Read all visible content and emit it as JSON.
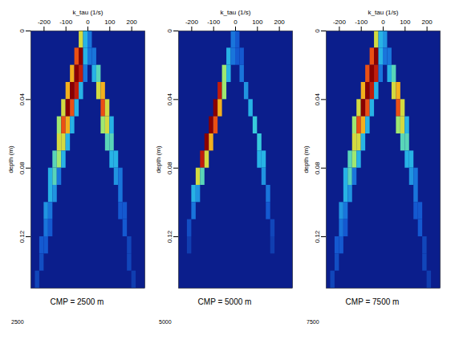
{
  "chart_data": [
    {
      "type": "heatmap",
      "x_label": "k_tau (1/s)",
      "y_label": "depth (m)",
      "caption": "CMP = 2500 m",
      "footnote": "2500",
      "xlim": [
        -260,
        260
      ],
      "xticks": [
        -200,
        -100,
        0,
        100,
        200
      ],
      "ylim": [
        0,
        0.15
      ],
      "yticks": [
        0,
        0.04,
        0.08,
        0.12
      ],
      "zlim": [
        0,
        1
      ],
      "cells": [
        {
          "x": -30,
          "y": 0.005,
          "value": 0.6
        },
        {
          "x": -10,
          "y": 0.005,
          "value": 0.3
        },
        {
          "x": 10,
          "y": 0.005,
          "value": 0.2
        },
        {
          "x": -50,
          "y": 0.015,
          "value": 0.8
        },
        {
          "x": -30,
          "y": 0.015,
          "value": 1.0
        },
        {
          "x": -10,
          "y": 0.015,
          "value": 0.3
        },
        {
          "x": 10,
          "y": 0.015,
          "value": 0.2
        },
        {
          "x": 30,
          "y": 0.015,
          "value": 0.2
        },
        {
          "x": -70,
          "y": 0.025,
          "value": 0.7
        },
        {
          "x": -50,
          "y": 0.025,
          "value": 1.0
        },
        {
          "x": -30,
          "y": 0.025,
          "value": 0.9
        },
        {
          "x": -10,
          "y": 0.025,
          "value": 0.2
        },
        {
          "x": 30,
          "y": 0.025,
          "value": 0.3
        },
        {
          "x": 50,
          "y": 0.025,
          "value": 0.4
        },
        {
          "x": -90,
          "y": 0.035,
          "value": 0.7
        },
        {
          "x": -70,
          "y": 0.035,
          "value": 1.0
        },
        {
          "x": -50,
          "y": 0.035,
          "value": 0.9
        },
        {
          "x": -30,
          "y": 0.035,
          "value": 0.3
        },
        {
          "x": 50,
          "y": 0.035,
          "value": 0.6
        },
        {
          "x": 70,
          "y": 0.035,
          "value": 0.7
        },
        {
          "x": -110,
          "y": 0.045,
          "value": 0.6
        },
        {
          "x": -90,
          "y": 0.045,
          "value": 1.0
        },
        {
          "x": -70,
          "y": 0.045,
          "value": 0.8
        },
        {
          "x": -50,
          "y": 0.045,
          "value": 0.3
        },
        {
          "x": 70,
          "y": 0.045,
          "value": 0.8
        },
        {
          "x": 90,
          "y": 0.045,
          "value": 0.6
        },
        {
          "x": -130,
          "y": 0.055,
          "value": 0.5
        },
        {
          "x": -110,
          "y": 0.055,
          "value": 0.8
        },
        {
          "x": -90,
          "y": 0.055,
          "value": 0.7
        },
        {
          "x": -70,
          "y": 0.055,
          "value": 0.3
        },
        {
          "x": 70,
          "y": 0.055,
          "value": 0.5
        },
        {
          "x": 90,
          "y": 0.055,
          "value": 0.6
        },
        {
          "x": 110,
          "y": 0.055,
          "value": 0.3
        },
        {
          "x": -130,
          "y": 0.065,
          "value": 0.6
        },
        {
          "x": -110,
          "y": 0.065,
          "value": 0.6
        },
        {
          "x": -90,
          "y": 0.065,
          "value": 0.3
        },
        {
          "x": 90,
          "y": 0.065,
          "value": 0.4
        },
        {
          "x": 110,
          "y": 0.065,
          "value": 0.4
        },
        {
          "x": -150,
          "y": 0.075,
          "value": 0.4
        },
        {
          "x": -130,
          "y": 0.075,
          "value": 0.5
        },
        {
          "x": -110,
          "y": 0.075,
          "value": 0.3
        },
        {
          "x": 110,
          "y": 0.075,
          "value": 0.3
        },
        {
          "x": 130,
          "y": 0.075,
          "value": 0.3
        },
        {
          "x": -170,
          "y": 0.085,
          "value": 0.3
        },
        {
          "x": -150,
          "y": 0.085,
          "value": 0.4
        },
        {
          "x": -130,
          "y": 0.085,
          "value": 0.2
        },
        {
          "x": 130,
          "y": 0.085,
          "value": 0.25
        },
        {
          "x": 150,
          "y": 0.085,
          "value": 0.2
        },
        {
          "x": -170,
          "y": 0.095,
          "value": 0.3
        },
        {
          "x": -150,
          "y": 0.095,
          "value": 0.25
        },
        {
          "x": 150,
          "y": 0.095,
          "value": 0.2
        },
        {
          "x": -190,
          "y": 0.105,
          "value": 0.25
        },
        {
          "x": -170,
          "y": 0.105,
          "value": 0.2
        },
        {
          "x": 150,
          "y": 0.105,
          "value": 0.15
        },
        {
          "x": 170,
          "y": 0.105,
          "value": 0.15
        },
        {
          "x": -190,
          "y": 0.115,
          "value": 0.2
        },
        {
          "x": -170,
          "y": 0.115,
          "value": 0.15
        },
        {
          "x": 170,
          "y": 0.115,
          "value": 0.15
        },
        {
          "x": -210,
          "y": 0.125,
          "value": 0.15
        },
        {
          "x": -190,
          "y": 0.125,
          "value": 0.15
        },
        {
          "x": 190,
          "y": 0.125,
          "value": 0.1
        },
        {
          "x": -210,
          "y": 0.135,
          "value": 0.12
        },
        {
          "x": 190,
          "y": 0.135,
          "value": 0.1
        },
        {
          "x": -230,
          "y": 0.145,
          "value": 0.1
        },
        {
          "x": 210,
          "y": 0.145,
          "value": 0.08
        }
      ]
    },
    {
      "type": "heatmap",
      "x_label": "k_tau (1/s)",
      "y_label": "depth (m)",
      "caption": "CMP = 5000 m",
      "footnote": "5000",
      "xlim": [
        -260,
        260
      ],
      "xticks": [
        -200,
        -100,
        0,
        100,
        200
      ],
      "ylim": [
        0,
        0.15
      ],
      "yticks": [
        0,
        0.04,
        0.08,
        0.12
      ],
      "zlim": [
        0,
        1
      ],
      "cells": [
        {
          "x": -10,
          "y": 0.005,
          "value": 0.2
        },
        {
          "x": 10,
          "y": 0.005,
          "value": 0.15
        },
        {
          "x": -30,
          "y": 0.015,
          "value": 0.3
        },
        {
          "x": -10,
          "y": 0.015,
          "value": 0.2
        },
        {
          "x": 10,
          "y": 0.015,
          "value": 0.15
        },
        {
          "x": 30,
          "y": 0.015,
          "value": 0.15
        },
        {
          "x": -50,
          "y": 0.025,
          "value": 0.5
        },
        {
          "x": -30,
          "y": 0.025,
          "value": 0.3
        },
        {
          "x": 30,
          "y": 0.025,
          "value": 0.2
        },
        {
          "x": -70,
          "y": 0.035,
          "value": 0.9
        },
        {
          "x": -50,
          "y": 0.035,
          "value": 0.5
        },
        {
          "x": 50,
          "y": 0.035,
          "value": 0.25
        },
        {
          "x": -90,
          "y": 0.045,
          "value": 1.0
        },
        {
          "x": -70,
          "y": 0.045,
          "value": 0.7
        },
        {
          "x": 70,
          "y": 0.045,
          "value": 0.3
        },
        {
          "x": -110,
          "y": 0.055,
          "value": 1.0
        },
        {
          "x": -90,
          "y": 0.055,
          "value": 0.8
        },
        {
          "x": 90,
          "y": 0.055,
          "value": 0.35
        },
        {
          "x": -130,
          "y": 0.065,
          "value": 1.0
        },
        {
          "x": -110,
          "y": 0.065,
          "value": 0.7
        },
        {
          "x": 110,
          "y": 0.065,
          "value": 0.35
        },
        {
          "x": -150,
          "y": 0.075,
          "value": 0.9
        },
        {
          "x": -130,
          "y": 0.075,
          "value": 0.6
        },
        {
          "x": 110,
          "y": 0.075,
          "value": 0.3
        },
        {
          "x": 130,
          "y": 0.075,
          "value": 0.3
        },
        {
          "x": -170,
          "y": 0.085,
          "value": 0.6
        },
        {
          "x": -150,
          "y": 0.085,
          "value": 0.4
        },
        {
          "x": 130,
          "y": 0.085,
          "value": 0.25
        },
        {
          "x": -190,
          "y": 0.095,
          "value": 0.3
        },
        {
          "x": -170,
          "y": 0.095,
          "value": 0.25
        },
        {
          "x": 150,
          "y": 0.095,
          "value": 0.2
        },
        {
          "x": -190,
          "y": 0.105,
          "value": 0.2
        },
        {
          "x": 150,
          "y": 0.105,
          "value": 0.15
        },
        {
          "x": -210,
          "y": 0.115,
          "value": 0.12
        },
        {
          "x": 170,
          "y": 0.115,
          "value": 0.1
        },
        {
          "x": -210,
          "y": 0.125,
          "value": 0.08
        },
        {
          "x": 170,
          "y": 0.125,
          "value": 0.08
        }
      ]
    },
    {
      "type": "heatmap",
      "x_label": "k_tau (1/s)",
      "y_label": "depth (m)",
      "caption": "CMP = 7500 m",
      "footnote": "7500",
      "xlim": [
        -260,
        260
      ],
      "xticks": [
        -200,
        -100,
        0,
        100,
        200
      ],
      "ylim": [
        0,
        0.15
      ],
      "yticks": [
        0,
        0.04,
        0.08,
        0.12
      ],
      "zlim": [
        0,
        1
      ],
      "cells": [
        {
          "x": -30,
          "y": 0.005,
          "value": 0.6
        },
        {
          "x": -10,
          "y": 0.005,
          "value": 0.3
        },
        {
          "x": 10,
          "y": 0.005,
          "value": 0.25
        },
        {
          "x": -50,
          "y": 0.015,
          "value": 0.8
        },
        {
          "x": -30,
          "y": 0.015,
          "value": 1.0
        },
        {
          "x": -10,
          "y": 0.015,
          "value": 0.3
        },
        {
          "x": 10,
          "y": 0.015,
          "value": 0.2
        },
        {
          "x": 30,
          "y": 0.015,
          "value": 0.2
        },
        {
          "x": -70,
          "y": 0.025,
          "value": 0.8
        },
        {
          "x": -50,
          "y": 0.025,
          "value": 1.0
        },
        {
          "x": -30,
          "y": 0.025,
          "value": 0.9
        },
        {
          "x": -10,
          "y": 0.025,
          "value": 0.2
        },
        {
          "x": 30,
          "y": 0.025,
          "value": 0.3
        },
        {
          "x": 50,
          "y": 0.025,
          "value": 0.4
        },
        {
          "x": -90,
          "y": 0.035,
          "value": 0.7
        },
        {
          "x": -70,
          "y": 0.035,
          "value": 1.0
        },
        {
          "x": -50,
          "y": 0.035,
          "value": 0.9
        },
        {
          "x": -30,
          "y": 0.035,
          "value": 0.3
        },
        {
          "x": 50,
          "y": 0.035,
          "value": 0.6
        },
        {
          "x": 70,
          "y": 0.035,
          "value": 0.7
        },
        {
          "x": -110,
          "y": 0.045,
          "value": 0.6
        },
        {
          "x": -90,
          "y": 0.045,
          "value": 1.0
        },
        {
          "x": -70,
          "y": 0.045,
          "value": 0.8
        },
        {
          "x": -50,
          "y": 0.045,
          "value": 0.3
        },
        {
          "x": 70,
          "y": 0.045,
          "value": 0.8
        },
        {
          "x": 90,
          "y": 0.045,
          "value": 0.6
        },
        {
          "x": -130,
          "y": 0.055,
          "value": 0.5
        },
        {
          "x": -110,
          "y": 0.055,
          "value": 0.8
        },
        {
          "x": -90,
          "y": 0.055,
          "value": 0.7
        },
        {
          "x": -70,
          "y": 0.055,
          "value": 0.3
        },
        {
          "x": 70,
          "y": 0.055,
          "value": 0.5
        },
        {
          "x": 90,
          "y": 0.055,
          "value": 0.6
        },
        {
          "x": 110,
          "y": 0.055,
          "value": 0.3
        },
        {
          "x": -130,
          "y": 0.065,
          "value": 0.6
        },
        {
          "x": -110,
          "y": 0.065,
          "value": 0.6
        },
        {
          "x": -90,
          "y": 0.065,
          "value": 0.3
        },
        {
          "x": 90,
          "y": 0.065,
          "value": 0.4
        },
        {
          "x": 110,
          "y": 0.065,
          "value": 0.4
        },
        {
          "x": -150,
          "y": 0.075,
          "value": 0.4
        },
        {
          "x": -130,
          "y": 0.075,
          "value": 0.5
        },
        {
          "x": -110,
          "y": 0.075,
          "value": 0.3
        },
        {
          "x": 110,
          "y": 0.075,
          "value": 0.3
        },
        {
          "x": 130,
          "y": 0.075,
          "value": 0.3
        },
        {
          "x": -170,
          "y": 0.085,
          "value": 0.3
        },
        {
          "x": -150,
          "y": 0.085,
          "value": 0.4
        },
        {
          "x": -130,
          "y": 0.085,
          "value": 0.2
        },
        {
          "x": 130,
          "y": 0.085,
          "value": 0.25
        },
        {
          "x": 150,
          "y": 0.085,
          "value": 0.2
        },
        {
          "x": -170,
          "y": 0.095,
          "value": 0.3
        },
        {
          "x": -150,
          "y": 0.095,
          "value": 0.25
        },
        {
          "x": 150,
          "y": 0.095,
          "value": 0.2
        },
        {
          "x": -190,
          "y": 0.105,
          "value": 0.25
        },
        {
          "x": -170,
          "y": 0.105,
          "value": 0.2
        },
        {
          "x": 150,
          "y": 0.105,
          "value": 0.15
        },
        {
          "x": 170,
          "y": 0.105,
          "value": 0.15
        },
        {
          "x": -190,
          "y": 0.115,
          "value": 0.2
        },
        {
          "x": -170,
          "y": 0.115,
          "value": 0.15
        },
        {
          "x": 170,
          "y": 0.115,
          "value": 0.15
        },
        {
          "x": -210,
          "y": 0.125,
          "value": 0.15
        },
        {
          "x": -190,
          "y": 0.125,
          "value": 0.15
        },
        {
          "x": 190,
          "y": 0.125,
          "value": 0.1
        },
        {
          "x": -210,
          "y": 0.135,
          "value": 0.12
        },
        {
          "x": 190,
          "y": 0.135,
          "value": 0.1
        },
        {
          "x": -230,
          "y": 0.145,
          "value": 0.1
        },
        {
          "x": 210,
          "y": 0.145,
          "value": 0.08
        }
      ]
    }
  ]
}
